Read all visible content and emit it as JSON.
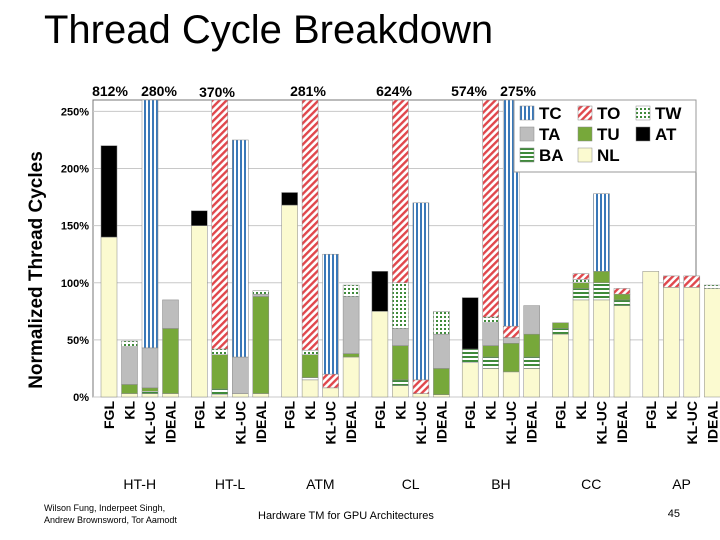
{
  "slide": {
    "title": "Thread Cycle Breakdown",
    "authors": [
      "Wilson Fung, Inderpeet Singh,",
      "Andrew Brownsword, Tor Aamodt"
    ],
    "talk_title": "Hardware TM for GPU Architectures",
    "page_number": "45"
  },
  "colors": {
    "TC": "#3a78b8",
    "TO": "#e0474c",
    "TW": "#3f8a3a",
    "TA": "#bdbdbd",
    "TU": "#77a83a",
    "AT": "#000000",
    "BA": "#3f8a3a",
    "NL": "#fbfad0"
  },
  "chart_data": {
    "type": "bar",
    "stacked": true,
    "ylabel": "Normalized Thread Cycles",
    "ylim": [
      0,
      260
    ],
    "yticks": [
      0,
      50,
      100,
      150,
      200,
      250
    ],
    "ytick_labels": [
      "0%",
      "50%",
      "100%",
      "150%",
      "200%",
      "250%"
    ],
    "grid": true,
    "legend": {
      "position": "top-right",
      "entries": [
        {
          "key": "TC",
          "label": "TC"
        },
        {
          "key": "TO",
          "label": "TO"
        },
        {
          "key": "TW",
          "label": "TW"
        },
        {
          "key": "TA",
          "label": "TA"
        },
        {
          "key": "TU",
          "label": "TU"
        },
        {
          "key": "AT",
          "label": "AT"
        },
        {
          "key": "BA",
          "label": "BA"
        },
        {
          "key": "NL",
          "label": "NL"
        }
      ]
    },
    "segment_order": [
      "NL",
      "BA",
      "TU",
      "TA",
      "TW",
      "TO",
      "TC",
      "AT"
    ],
    "groups": [
      {
        "name": "HT-H",
        "bars": [
          {
            "label": "FGL",
            "segments": {
              "NL": 140,
              "AT": 80
            }
          },
          {
            "label": "KL",
            "segments": {
              "NL": 3,
              "TU": 8,
              "TA": 33,
              "TW": 5
            }
          },
          {
            "label": "KL-UC",
            "segments": {
              "NL": 3,
              "BA": 2,
              "TU": 3,
              "TA": 35,
              "TC": 260
            }
          },
          {
            "label": "IDEAL",
            "segments": {
              "NL": 3,
              "TU": 57,
              "TA": 25
            }
          }
        ],
        "clipped_labels": [
          "812%",
          "280%"
        ]
      },
      {
        "name": "HT-L",
        "bars": [
          {
            "label": "FGL",
            "segments": {
              "NL": 150,
              "AT": 13
            }
          },
          {
            "label": "KL",
            "segments": {
              "NL": 2,
              "BA": 5,
              "TU": 30,
              "TW": 5,
              "TO": 218
            }
          },
          {
            "label": "KL-UC",
            "segments": {
              "NL": 3,
              "TA": 32,
              "TC": 190
            }
          },
          {
            "label": "IDEAL",
            "segments": {
              "NL": 3,
              "TU": 85,
              "TA": 2,
              "TW": 3
            }
          }
        ],
        "clipped_labels": [
          "370%"
        ]
      },
      {
        "name": "ATM",
        "bars": [
          {
            "label": "FGL",
            "segments": {
              "NL": 168,
              "AT": 11
            }
          },
          {
            "label": "KL",
            "segments": {
              "NL": 15,
              "TU": 20,
              "BA": 2,
              "TW": 4,
              "TO": 219
            }
          },
          {
            "label": "KL-UC",
            "segments": {
              "NL": 8,
              "TO": 12,
              "TC": 105
            }
          },
          {
            "label": "IDEAL",
            "segments": {
              "NL": 35,
              "TU": 3,
              "TA": 50,
              "TW": 10
            }
          }
        ],
        "clipped_labels": [
          "281%"
        ]
      },
      {
        "name": "CL",
        "bars": [
          {
            "label": "FGL",
            "segments": {
              "NL": 75,
              "AT": 35
            }
          },
          {
            "label": "KL",
            "segments": {
              "NL": 10,
              "BA": 5,
              "TU": 30,
              "TA": 15,
              "TW": 40,
              "TO": 160
            }
          },
          {
            "label": "KL-UC",
            "segments": {
              "NL": 3,
              "TO": 12,
              "TC": 155
            }
          },
          {
            "label": "IDEAL",
            "segments": {
              "NL": 2,
              "TU": 23,
              "TA": 30,
              "TW": 20
            }
          }
        ],
        "clipped_labels": [
          "624%"
        ]
      },
      {
        "name": "BH",
        "bars": [
          {
            "label": "FGL",
            "segments": {
              "NL": 30,
              "BA": 12,
              "AT": 45
            }
          },
          {
            "label": "KL",
            "segments": {
              "NL": 25,
              "BA": 10,
              "TU": 10,
              "TA": 20,
              "TW": 5,
              "TO": 190
            }
          },
          {
            "label": "KL-UC",
            "segments": {
              "NL": 22,
              "TU": 25,
              "TA": 5,
              "TO": 10,
              "TC": 198
            }
          },
          {
            "label": "IDEAL",
            "segments": {
              "NL": 25,
              "BA": 10,
              "TU": 20,
              "TA": 25
            }
          }
        ],
        "clipped_labels": [
          "574%",
          "275%"
        ]
      },
      {
        "name": "CC",
        "bars": [
          {
            "label": "FGL",
            "segments": {
              "NL": 55,
              "TU": 5,
              "BA": 5
            }
          },
          {
            "label": "KL",
            "segments": {
              "NL": 85,
              "BA": 10,
              "TU": 5,
              "TW": 3,
              "TO": 5
            }
          },
          {
            "label": "KL-UC",
            "segments": {
              "NL": 85,
              "BA": 15,
              "TU": 10,
              "TC": 68
            }
          },
          {
            "label": "IDEAL",
            "segments": {
              "NL": 80,
              "BA": 5,
              "TU": 5,
              "TO": 5
            }
          }
        ],
        "clipped_labels": []
      },
      {
        "name": "AP",
        "bars": [
          {
            "label": "FGL",
            "segments": {
              "NL": 110
            }
          },
          {
            "label": "KL",
            "segments": {
              "NL": 96,
              "TO": 10
            }
          },
          {
            "label": "KL-UC",
            "segments": {
              "NL": 96,
              "TO": 10
            }
          },
          {
            "label": "IDEAL",
            "segments": {
              "NL": 95,
              "TW": 3
            }
          }
        ],
        "clipped_labels": []
      }
    ],
    "annotations": [
      "812%",
      "280%",
      "370%",
      "281%",
      "624%",
      "574%",
      "275%"
    ]
  }
}
